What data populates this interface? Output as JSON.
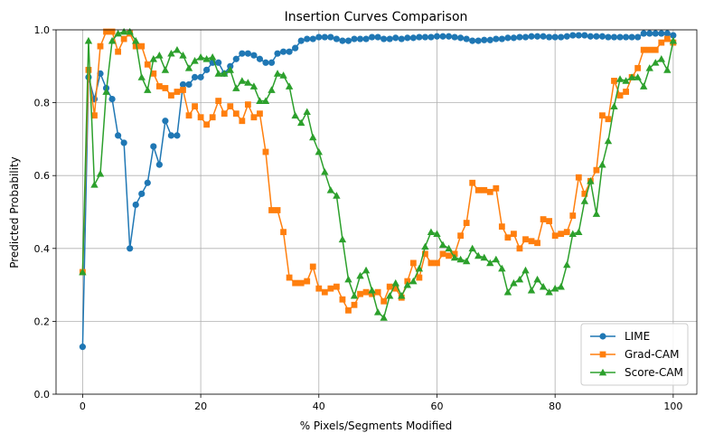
{
  "chart_data": {
    "type": "line",
    "title": "Insertion Curves Comparison",
    "xlabel": "% Pixels/Segments Modified",
    "ylabel": "Predicted Probability",
    "xlim": [
      -4.5,
      104
    ],
    "ylim": [
      0.0,
      1.0
    ],
    "xticks": [
      0,
      20,
      40,
      60,
      80,
      100
    ],
    "yticks": [
      0.0,
      0.2,
      0.4,
      0.6,
      0.8,
      1.0
    ],
    "ytick_labels": [
      "0.0",
      "0.2",
      "0.4",
      "0.6",
      "0.8",
      "1.0"
    ],
    "grid": true,
    "legend_position": "lower-right",
    "x": [
      0,
      1,
      2,
      3,
      4,
      5,
      6,
      7,
      8,
      9,
      10,
      11,
      12,
      13,
      14,
      15,
      16,
      17,
      18,
      19,
      20,
      21,
      22,
      23,
      24,
      25,
      26,
      27,
      28,
      29,
      30,
      31,
      32,
      33,
      34,
      35,
      36,
      37,
      38,
      39,
      40,
      41,
      42,
      43,
      44,
      45,
      46,
      47,
      48,
      49,
      50,
      51,
      52,
      53,
      54,
      55,
      56,
      57,
      58,
      59,
      60,
      61,
      62,
      63,
      64,
      65,
      66,
      67,
      68,
      69,
      70,
      71,
      72,
      73,
      74,
      75,
      76,
      77,
      78,
      79,
      80,
      81,
      82,
      83,
      84,
      85,
      86,
      87,
      88,
      89,
      90,
      91,
      92,
      93,
      94,
      95,
      96,
      97,
      98,
      99,
      100
    ],
    "series": [
      {
        "name": "LIME",
        "color": "#1f77b4",
        "marker": "circle",
        "values": [
          0.13,
          0.87,
          0.81,
          0.88,
          0.84,
          0.81,
          0.71,
          0.69,
          0.4,
          0.52,
          0.55,
          0.58,
          0.68,
          0.63,
          0.75,
          0.71,
          0.71,
          0.85,
          0.85,
          0.87,
          0.87,
          0.89,
          0.91,
          0.91,
          0.88,
          0.9,
          0.92,
          0.935,
          0.935,
          0.93,
          0.92,
          0.91,
          0.91,
          0.935,
          0.94,
          0.94,
          0.95,
          0.97,
          0.975,
          0.975,
          0.98,
          0.98,
          0.98,
          0.975,
          0.97,
          0.97,
          0.975,
          0.975,
          0.975,
          0.98,
          0.98,
          0.975,
          0.975,
          0.978,
          0.975,
          0.978,
          0.978,
          0.98,
          0.98,
          0.98,
          0.982,
          0.982,
          0.982,
          0.98,
          0.978,
          0.975,
          0.97,
          0.97,
          0.972,
          0.972,
          0.975,
          0.975,
          0.978,
          0.978,
          0.98,
          0.98,
          0.982,
          0.982,
          0.982,
          0.98,
          0.98,
          0.98,
          0.982,
          0.985,
          0.985,
          0.985,
          0.982,
          0.982,
          0.982,
          0.98,
          0.98,
          0.98,
          0.98,
          0.98,
          0.98,
          0.99,
          0.99,
          0.99,
          0.99,
          0.99,
          0.985
        ]
      },
      {
        "name": "Grad-CAM",
        "color": "#ff7f0e",
        "marker": "square",
        "values": [
          0.335,
          0.89,
          0.765,
          0.955,
          0.995,
          0.995,
          0.94,
          0.975,
          0.99,
          0.955,
          0.955,
          0.905,
          0.88,
          0.845,
          0.84,
          0.82,
          0.83,
          0.835,
          0.765,
          0.79,
          0.76,
          0.74,
          0.76,
          0.805,
          0.77,
          0.79,
          0.77,
          0.75,
          0.795,
          0.76,
          0.77,
          0.665,
          0.505,
          0.505,
          0.445,
          0.32,
          0.305,
          0.305,
          0.31,
          0.35,
          0.29,
          0.28,
          0.29,
          0.295,
          0.26,
          0.23,
          0.245,
          0.275,
          0.28,
          0.275,
          0.28,
          0.255,
          0.295,
          0.29,
          0.265,
          0.31,
          0.36,
          0.32,
          0.385,
          0.36,
          0.36,
          0.385,
          0.38,
          0.385,
          0.435,
          0.47,
          0.58,
          0.56,
          0.56,
          0.555,
          0.565,
          0.46,
          0.43,
          0.44,
          0.4,
          0.425,
          0.42,
          0.415,
          0.48,
          0.475,
          0.435,
          0.44,
          0.445,
          0.49,
          0.595,
          0.55,
          0.585,
          0.615,
          0.765,
          0.755,
          0.86,
          0.82,
          0.83,
          0.87,
          0.895,
          0.945,
          0.945,
          0.945,
          0.965,
          0.975,
          0.965
        ]
      },
      {
        "name": "Score-CAM",
        "color": "#2ca02c",
        "marker": "triangle",
        "values": [
          0.335,
          0.97,
          0.575,
          0.605,
          0.83,
          0.97,
          0.99,
          0.995,
          0.995,
          0.97,
          0.87,
          0.835,
          0.92,
          0.93,
          0.89,
          0.935,
          0.945,
          0.93,
          0.895,
          0.915,
          0.925,
          0.92,
          0.925,
          0.88,
          0.88,
          0.89,
          0.84,
          0.86,
          0.855,
          0.845,
          0.805,
          0.805,
          0.835,
          0.88,
          0.875,
          0.845,
          0.765,
          0.745,
          0.775,
          0.705,
          0.665,
          0.61,
          0.56,
          0.545,
          0.425,
          0.315,
          0.27,
          0.325,
          0.34,
          0.285,
          0.225,
          0.21,
          0.27,
          0.305,
          0.27,
          0.3,
          0.31,
          0.345,
          0.405,
          0.445,
          0.44,
          0.41,
          0.4,
          0.375,
          0.37,
          0.365,
          0.4,
          0.38,
          0.375,
          0.36,
          0.37,
          0.345,
          0.28,
          0.305,
          0.315,
          0.34,
          0.285,
          0.315,
          0.295,
          0.28,
          0.29,
          0.295,
          0.355,
          0.44,
          0.445,
          0.53,
          0.585,
          0.495,
          0.63,
          0.695,
          0.79,
          0.865,
          0.86,
          0.87,
          0.87,
          0.845,
          0.895,
          0.91,
          0.92,
          0.89,
          0.97
        ]
      }
    ]
  }
}
